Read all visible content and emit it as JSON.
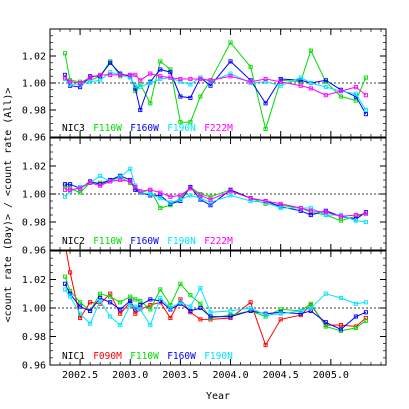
{
  "chart_data": {
    "type": "line",
    "xlabel": "Year",
    "ylabel": "<count rate (Day)> / <count rate (All)>",
    "xlim": [
      2002.2,
      2005.55
    ],
    "x_ticks": [
      "2002.5",
      "2003.0",
      "2003.5",
      "2004.0",
      "2004.5",
      "2005.0"
    ],
    "reference_line": 1.0,
    "colors": {
      "F090M": "#ff0000",
      "F110W": "#00dd00",
      "F160W": "#0000ff",
      "F190N": "#00e5ff",
      "F222M": "#ff00ff"
    },
    "panels": [
      {
        "name": "NIC3",
        "ylim": [
          0.96,
          1.04
        ],
        "y_ticks": [
          "0.96",
          "0.98",
          "1.00",
          "1.02"
        ],
        "series": [
          {
            "name": "F110W",
            "x": [
              2002.35,
              2002.4,
              2002.5,
              2002.6,
              2002.7,
              2002.8,
              2002.9,
              2003.0,
              2003.05,
              2003.1,
              2003.2,
              2003.3,
              2003.4,
              2003.5,
              2003.6,
              2003.7,
              2003.8,
              2004.0,
              2004.2,
              2004.35,
              2004.5,
              2004.7,
              2004.8,
              2004.95,
              2005.1,
              2005.25,
              2005.35
            ],
            "y": [
              1.022,
              1.002,
              1.001,
              1.002,
              1.005,
              1.016,
              1.005,
              1.006,
              0.994,
              0.999,
              0.985,
              1.016,
              1.01,
              0.971,
              0.971,
              0.99,
              1.002,
              1.03,
              1.012,
              0.966,
              1.002,
              1.001,
              1.024,
              1.001,
              0.99,
              0.987,
              1.004
            ]
          },
          {
            "name": "F160W",
            "x": [
              2002.35,
              2002.4,
              2002.5,
              2002.6,
              2002.7,
              2002.8,
              2002.9,
              2003.0,
              2003.05,
              2003.1,
              2003.2,
              2003.3,
              2003.4,
              2003.5,
              2003.6,
              2003.7,
              2003.8,
              2004.0,
              2004.2,
              2004.35,
              2004.5,
              2004.7,
              2004.8,
              2004.95,
              2005.1,
              2005.25,
              2005.35
            ],
            "y": [
              1.006,
              0.998,
              0.997,
              1.005,
              1.005,
              1.015,
              1.007,
              1.005,
              0.996,
              0.98,
              1.001,
              1.01,
              1.008,
              0.99,
              0.989,
              1.004,
              0.998,
              1.016,
              1.002,
              0.985,
              1.003,
              1.002,
              1.0,
              1.002,
              0.995,
              0.99,
              0.977
            ]
          },
          {
            "name": "F190N",
            "x": [
              2002.35,
              2002.4,
              2002.5,
              2002.6,
              2002.7,
              2002.8,
              2002.9,
              2003.0,
              2003.05,
              2003.1,
              2003.2,
              2003.3,
              2003.4,
              2003.5,
              2003.6,
              2003.7,
              2003.8,
              2004.0,
              2004.2,
              2004.35,
              2004.5,
              2004.7,
              2004.8,
              2004.95,
              2005.1,
              2005.25,
              2005.35
            ],
            "y": [
              1.003,
              0.999,
              0.999,
              1.001,
              1.002,
              1.008,
              1.006,
              1.004,
              0.998,
              0.997,
              1.0,
              1.003,
              1.004,
              1.001,
              0.999,
              1.004,
              1.001,
              1.007,
              1.0,
              1.001,
              0.998,
              1.004,
              1.0,
              0.997,
              0.994,
              0.992,
              0.98
            ]
          },
          {
            "name": "F222M",
            "x": [
              2002.35,
              2002.4,
              2002.5,
              2002.6,
              2002.7,
              2002.8,
              2002.9,
              2003.0,
              2003.05,
              2003.1,
              2003.2,
              2003.3,
              2003.4,
              2003.5,
              2003.6,
              2003.7,
              2003.8,
              2004.0,
              2004.2,
              2004.35,
              2004.5,
              2004.7,
              2004.8,
              2004.95,
              2005.1,
              2005.25,
              2005.35
            ],
            "y": [
              1.004,
              1.001,
              1.0,
              1.004,
              1.006,
              1.006,
              1.006,
              1.006,
              1.006,
              1.002,
              1.007,
              1.005,
              1.004,
              1.003,
              1.003,
              1.003,
              1.002,
              1.005,
              1.001,
              1.003,
              1.001,
              0.998,
              0.996,
              0.991,
              0.994,
              0.997,
              0.991
            ]
          }
        ]
      },
      {
        "name": "NIC2",
        "ylim": [
          0.96,
          1.04
        ],
        "y_ticks": [
          "0.96",
          "0.98",
          "1.00",
          "1.02"
        ],
        "series": [
          {
            "name": "F110W",
            "x": [
              2002.35,
              2002.4,
              2002.5,
              2002.6,
              2002.7,
              2002.8,
              2002.9,
              2003.0,
              2003.05,
              2003.1,
              2003.2,
              2003.3,
              2003.4,
              2003.5,
              2003.6,
              2003.7,
              2003.8,
              2004.0,
              2004.2,
              2004.35,
              2004.5,
              2004.7,
              2004.8,
              2004.95,
              2005.1,
              2005.25,
              2005.35
            ],
            "y": [
              1.006,
              1.004,
              1.001,
              1.008,
              1.008,
              1.01,
              1.012,
              1.008,
              1.004,
              1.001,
              1.003,
              0.99,
              0.992,
              0.997,
              1.005,
              1.0,
              0.998,
              1.003,
              0.997,
              0.993,
              0.992,
              0.99,
              0.987,
              0.985,
              0.981,
              0.984,
              0.986
            ]
          },
          {
            "name": "F160W",
            "x": [
              2002.35,
              2002.4,
              2002.5,
              2002.6,
              2002.7,
              2002.8,
              2002.9,
              2003.0,
              2003.05,
              2003.1,
              2003.2,
              2003.3,
              2003.4,
              2003.5,
              2003.6,
              2003.7,
              2003.8,
              2004.0,
              2004.2,
              2004.35,
              2004.5,
              2004.7,
              2004.8,
              2004.95,
              2005.1,
              2005.25,
              2005.35
            ],
            "y": [
              1.007,
              1.007,
              1.004,
              1.009,
              1.007,
              1.01,
              1.013,
              1.01,
              1.003,
              1.001,
              0.999,
              0.999,
              0.993,
              0.995,
              1.005,
              0.996,
              0.992,
              1.003,
              0.997,
              0.995,
              0.991,
              0.988,
              0.985,
              0.988,
              0.984,
              0.982,
              0.987
            ]
          },
          {
            "name": "F190N",
            "x": [
              2002.35,
              2002.4,
              2002.5,
              2002.6,
              2002.7,
              2002.8,
              2002.9,
              2003.0,
              2003.05,
              2003.1,
              2003.2,
              2003.3,
              2003.4,
              2003.5,
              2003.6,
              2003.7,
              2003.8,
              2004.0,
              2004.2,
              2004.35,
              2004.5,
              2004.7,
              2004.8,
              2004.95,
              2005.1,
              2005.25,
              2005.35
            ],
            "y": [
              0.998,
              1.002,
              1.005,
              1.008,
              1.013,
              1.009,
              1.012,
              1.018,
              1.006,
              1.001,
              1.0,
              0.997,
              0.994,
              0.996,
              0.999,
              0.997,
              0.994,
              0.999,
              0.995,
              0.994,
              0.99,
              0.99,
              0.99,
              0.985,
              0.985,
              0.981,
              0.98
            ]
          },
          {
            "name": "F222M",
            "x": [
              2002.35,
              2002.4,
              2002.5,
              2002.6,
              2002.7,
              2002.8,
              2002.9,
              2003.0,
              2003.05,
              2003.1,
              2003.2,
              2003.3,
              2003.4,
              2003.5,
              2003.6,
              2003.7,
              2003.8,
              2004.0,
              2004.2,
              2004.35,
              2004.5,
              2004.7,
              2004.8,
              2004.95,
              2005.1,
              2005.25,
              2005.35
            ],
            "y": [
              1.003,
              1.003,
              1.004,
              1.008,
              1.006,
              1.009,
              1.01,
              1.009,
              1.005,
              1.002,
              1.003,
              1.001,
              0.998,
              0.999,
              1.004,
              0.999,
              0.996,
              1.002,
              0.997,
              0.995,
              0.993,
              0.99,
              0.988,
              0.987,
              0.984,
              0.985,
              0.986
            ]
          }
        ]
      },
      {
        "name": "NIC1",
        "ylim": [
          0.96,
          1.04
        ],
        "y_ticks": [
          "0.96",
          "0.98",
          "1.00",
          "1.02"
        ],
        "series": [
          {
            "name": "F090M",
            "x": [
              2002.35,
              2002.4,
              2002.5,
              2002.6,
              2002.7,
              2002.8,
              2002.9,
              2003.0,
              2003.05,
              2003.1,
              2003.2,
              2003.3,
              2003.4,
              2003.5,
              2003.6,
              2003.7,
              2003.8,
              2004.0,
              2004.2,
              2004.35,
              2004.5,
              2004.7,
              2004.8,
              2004.95,
              2005.1,
              2005.25,
              2005.35
            ],
            "y": [
              1.045,
              1.025,
              0.993,
              1.004,
              1.003,
              1.01,
              0.996,
              1.004,
              0.996,
              0.999,
              1.002,
              1.004,
              0.993,
              1.006,
              0.997,
              0.992,
              0.992,
              0.993,
              1.004,
              0.974,
              0.992,
              0.995,
              1.002,
              0.988,
              0.988,
              0.987,
              0.993
            ]
          },
          {
            "name": "F110W",
            "x": [
              2002.35,
              2002.4,
              2002.5,
              2002.6,
              2002.7,
              2002.8,
              2002.9,
              2003.0,
              2003.05,
              2003.1,
              2003.2,
              2003.3,
              2003.4,
              2003.5,
              2003.6,
              2003.7,
              2003.8,
              2004.0,
              2004.2,
              2004.35,
              2004.5,
              2004.7,
              2004.8,
              2004.95,
              2005.1,
              2005.25,
              2005.35
            ],
            "y": [
              1.022,
              1.012,
              1.004,
              0.998,
              1.01,
              1.008,
              1.004,
              1.008,
              1.006,
              1.005,
              0.999,
              1.013,
              1.002,
              1.017,
              1.009,
              1.003,
              0.993,
              0.995,
              0.998,
              0.994,
              0.999,
              0.998,
              1.003,
              0.987,
              0.984,
              0.986,
              0.991
            ]
          },
          {
            "name": "F160W",
            "x": [
              2002.35,
              2002.4,
              2002.5,
              2002.6,
              2002.7,
              2002.8,
              2002.9,
              2003.0,
              2003.05,
              2003.1,
              2003.2,
              2003.3,
              2003.4,
              2003.5,
              2003.6,
              2003.7,
              2003.8,
              2004.0,
              2004.2,
              2004.35,
              2004.5,
              2004.7,
              2004.8,
              2004.95,
              2005.1,
              2005.25,
              2005.35
            ],
            "y": [
              1.017,
              1.01,
              1.001,
              0.998,
              1.007,
              1.004,
              0.999,
              1.005,
              0.999,
              1.002,
              1.006,
              1.005,
              0.999,
              1.003,
              0.998,
              1.0,
              0.994,
              0.994,
              0.998,
              0.996,
              0.997,
              0.996,
              0.998,
              0.99,
              0.985,
              0.994,
              0.997
            ]
          },
          {
            "name": "F190N",
            "x": [
              2002.35,
              2002.4,
              2002.5,
              2002.6,
              2002.7,
              2002.8,
              2002.9,
              2003.0,
              2003.05,
              2003.1,
              2003.2,
              2003.3,
              2003.4,
              2003.5,
              2003.6,
              2003.7,
              2003.8,
              2004.0,
              2004.2,
              2004.35,
              2004.5,
              2004.7,
              2004.8,
              2004.95,
              2005.1,
              2005.25,
              2005.35
            ],
            "y": [
              1.013,
              1.008,
              0.996,
              0.989,
              1.005,
              0.994,
              0.988,
              1.002,
              1.001,
              0.999,
              0.988,
              1.007,
              1.0,
              1.004,
              1.001,
              1.014,
              0.997,
              0.998,
              1.0,
              0.995,
              0.996,
              0.998,
              1.0,
              1.01,
              1.007,
              1.003,
              1.004
            ]
          }
        ]
      }
    ]
  }
}
